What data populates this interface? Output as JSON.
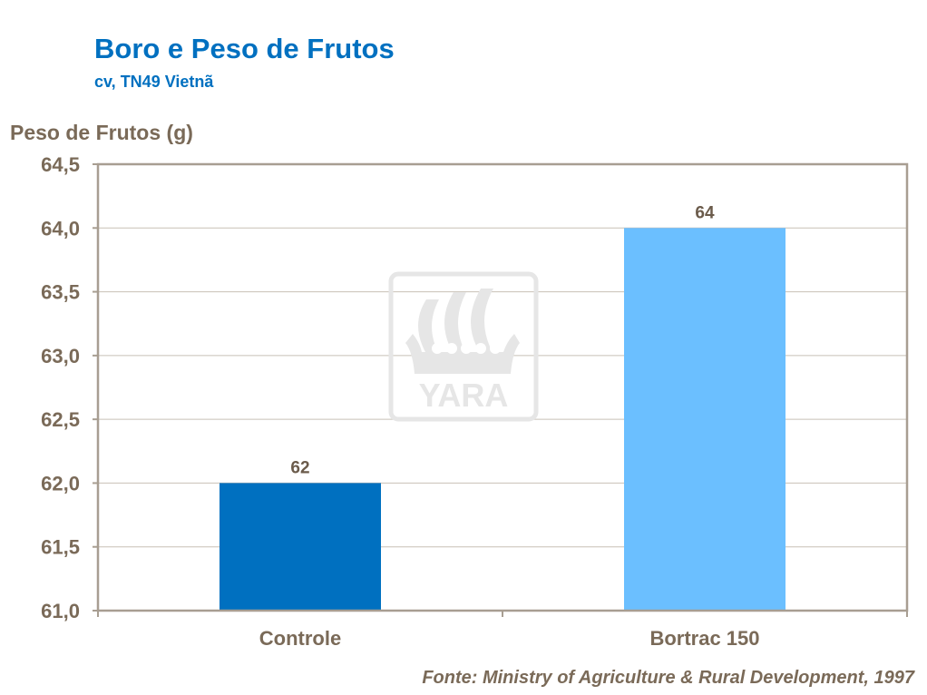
{
  "chart_data": {
    "type": "bar",
    "title": "Boro e Peso de Frutos",
    "subtitle": "cv, TN49 Vietnã",
    "ylabel": "Peso de Frutos (g)",
    "xlabel": "",
    "categories": [
      "Controle",
      "Bortrac 150"
    ],
    "values": [
      62,
      64
    ],
    "data_labels": [
      "62",
      "64"
    ],
    "ylim": [
      61.0,
      64.5
    ],
    "yticks": [
      61.0,
      61.5,
      62.0,
      62.5,
      63.0,
      63.5,
      64.0,
      64.5
    ],
    "ytick_labels": [
      "61,0",
      "61,5",
      "62,0",
      "62,5",
      "63,0",
      "63,5",
      "64,0",
      "64,5"
    ],
    "bar_colors": [
      "#0070c0",
      "#6bbfff"
    ],
    "grid": true,
    "legend": "none"
  },
  "source": "Fonte: Ministry of Agriculture & Rural Development,  1997",
  "watermark": {
    "text": "YARA",
    "color": "#e6e6e6"
  }
}
